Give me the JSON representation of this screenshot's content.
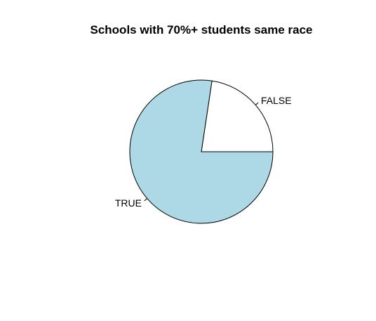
{
  "chart_data": {
    "type": "pie",
    "title": "Schools with 70%+ students same race",
    "slices": [
      {
        "label": "FALSE",
        "value": 0.2263,
        "color": "#ffffff"
      },
      {
        "label": "TRUE",
        "value": 0.7737,
        "color": "#add8e6"
      }
    ],
    "start_angle_deg": 0,
    "direction": "counterclockwise",
    "border_color": "#000000",
    "legend": "none"
  }
}
